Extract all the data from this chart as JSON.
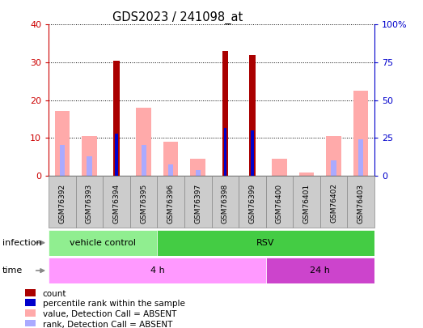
{
  "title": "GDS2023 / 241098_at",
  "samples": [
    "GSM76392",
    "GSM76393",
    "GSM76394",
    "GSM76395",
    "GSM76396",
    "GSM76397",
    "GSM76398",
    "GSM76399",
    "GSM76400",
    "GSM76401",
    "GSM76402",
    "GSM76403"
  ],
  "value_absent": [
    17.0,
    10.5,
    null,
    18.0,
    9.0,
    4.5,
    null,
    null,
    4.5,
    0.8,
    10.5,
    22.5
  ],
  "rank_absent": [
    8.0,
    5.0,
    null,
    8.0,
    3.0,
    1.5,
    null,
    null,
    null,
    null,
    4.0,
    9.5
  ],
  "count": [
    null,
    null,
    30.5,
    null,
    null,
    null,
    33.0,
    32.0,
    null,
    null,
    null,
    null
  ],
  "percentile": [
    null,
    null,
    11.0,
    null,
    null,
    null,
    12.5,
    12.0,
    null,
    null,
    null,
    null
  ],
  "ylim_left": [
    0,
    40
  ],
  "ylim_right": [
    0,
    100
  ],
  "yticks_left": [
    0,
    10,
    20,
    30,
    40
  ],
  "yticks_right": [
    0,
    25,
    50,
    75,
    100
  ],
  "yticklabels_right": [
    "0",
    "25",
    "50",
    "75",
    "100%"
  ],
  "color_count": "#aa0000",
  "color_percentile": "#0000cc",
  "color_value_absent": "#ffaaaa",
  "color_rank_absent": "#aaaaff",
  "infection_groups": [
    {
      "label": "vehicle control",
      "start": 0,
      "end": 4,
      "color": "#90ee90"
    },
    {
      "label": "RSV",
      "start": 4,
      "end": 12,
      "color": "#44cc44"
    }
  ],
  "time_groups": [
    {
      "label": "4 h",
      "start": 0,
      "end": 8,
      "color": "#ff99ff"
    },
    {
      "label": "24 h",
      "start": 8,
      "end": 12,
      "color": "#cc44cc"
    }
  ],
  "legend_items": [
    {
      "color": "#aa0000",
      "label": "count"
    },
    {
      "color": "#0000cc",
      "label": "percentile rank within the sample"
    },
    {
      "color": "#ffaaaa",
      "label": "value, Detection Call = ABSENT"
    },
    {
      "color": "#aaaaff",
      "label": "rank, Detection Call = ABSENT"
    }
  ],
  "left_axis_color": "#cc0000",
  "right_axis_color": "#0000cc",
  "sample_box_color": "#cccccc",
  "plot_bg": "#ffffff",
  "border_color": "#888888"
}
